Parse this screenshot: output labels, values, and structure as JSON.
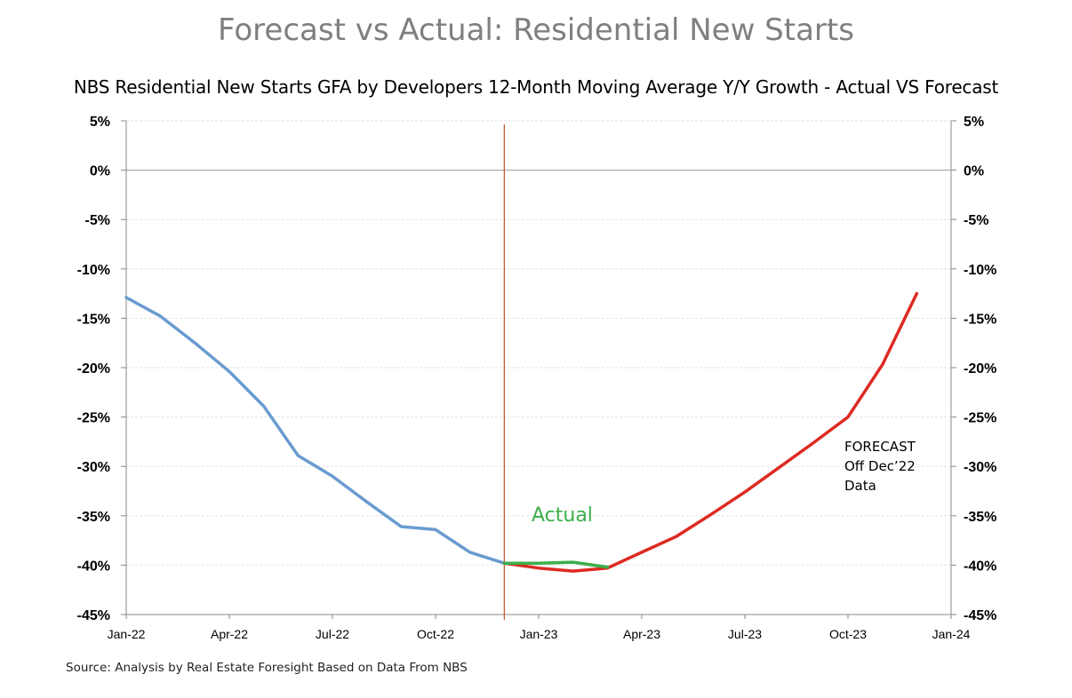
{
  "page": {
    "title": "Forecast vs Actual: Residential New Starts",
    "source": "Source: Analysis by Real Estate Foresight Based on Data From NBS"
  },
  "chart_data": {
    "type": "line",
    "title": "NBS Residential New Starts GFA by Developers 12-Month Moving Average Y/Y Growth - Actual VS Forecast",
    "xlabel": "",
    "ylabel": "",
    "x_ticks": [
      "Jan-22",
      "Apr-22",
      "Jul-22",
      "Oct-22",
      "Jan-23",
      "Apr-23",
      "Jul-23",
      "Oct-23",
      "Jan-24"
    ],
    "y_ticks": [
      "5%",
      "0%",
      "-5%",
      "-10%",
      "-15%",
      "-20%",
      "-25%",
      "-30%",
      "-35%",
      "-40%",
      "-45%"
    ],
    "ylim": [
      -45,
      5
    ],
    "xlim": [
      "2022-01",
      "2024-01"
    ],
    "grid": true,
    "dual_y_axis": true,
    "vertical_marker": "2022-12",
    "series": [
      {
        "key": "history",
        "color": "#6a9bd0",
        "points": [
          {
            "x": "2022-01",
            "y": -12.9
          },
          {
            "x": "2022-02",
            "y": -14.8
          },
          {
            "x": "2022-03",
            "y": -17.5
          },
          {
            "x": "2022-04",
            "y": -20.4
          },
          {
            "x": "2022-05",
            "y": -23.9
          },
          {
            "x": "2022-06",
            "y": -28.9
          },
          {
            "x": "2022-07",
            "y": -31.0
          },
          {
            "x": "2022-08",
            "y": -33.6
          },
          {
            "x": "2022-09",
            "y": -36.1
          },
          {
            "x": "2022-10",
            "y": -36.4
          },
          {
            "x": "2022-11",
            "y": -38.7
          },
          {
            "x": "2022-12",
            "y": -39.8
          }
        ]
      },
      {
        "key": "forecast",
        "color": "#dd2a22",
        "points": [
          {
            "x": "2022-12",
            "y": -39.8
          },
          {
            "x": "2023-01",
            "y": -40.3
          },
          {
            "x": "2023-02",
            "y": -40.6
          },
          {
            "x": "2023-03",
            "y": -40.3
          },
          {
            "x": "2023-04",
            "y": -38.7
          },
          {
            "x": "2023-05",
            "y": -37.1
          },
          {
            "x": "2023-06",
            "y": -34.9
          },
          {
            "x": "2023-07",
            "y": -32.6
          },
          {
            "x": "2023-08",
            "y": -30.1
          },
          {
            "x": "2023-09",
            "y": -27.6
          },
          {
            "x": "2023-10",
            "y": -25.0
          },
          {
            "x": "2023-11",
            "y": -19.7
          },
          {
            "x": "2023-12",
            "y": -12.5
          }
        ]
      },
      {
        "key": "actual",
        "color": "#3cae4a",
        "points": [
          {
            "x": "2022-12",
            "y": -39.8
          },
          {
            "x": "2023-01",
            "y": -39.8
          },
          {
            "x": "2023-02",
            "y": -39.7
          },
          {
            "x": "2023-03",
            "y": -40.2
          }
        ]
      }
    ],
    "annotations": {
      "actual": "Actual",
      "forecast_line1": "FORECAST",
      "forecast_line2": "Off Dec’22",
      "forecast_line3": "Data"
    }
  }
}
